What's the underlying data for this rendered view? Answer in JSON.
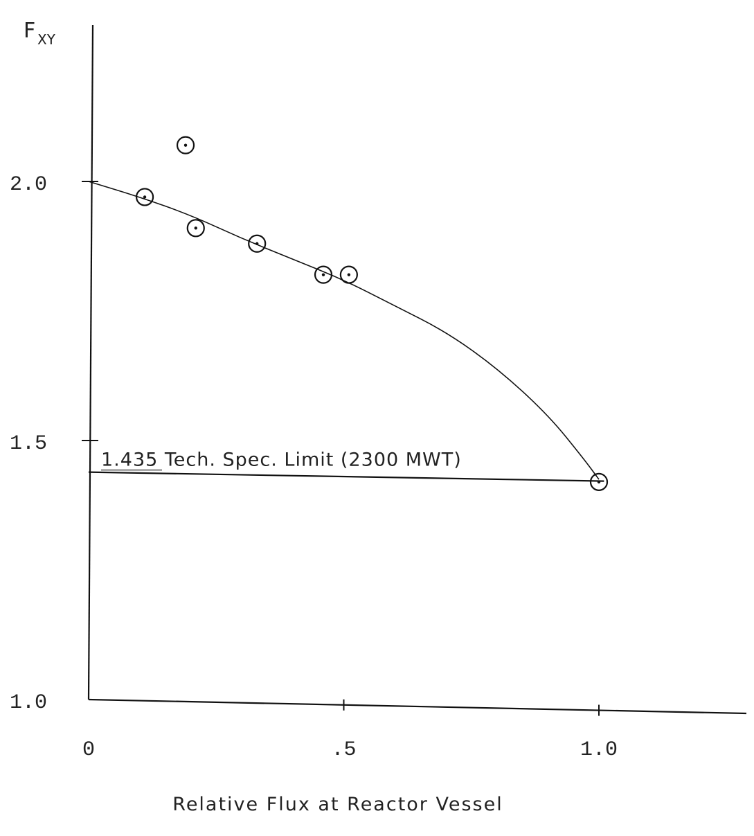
{
  "chart_data": {
    "type": "scatter",
    "xlabel": "Relative Flux at Reactor Vessel",
    "ylabel_main": "F",
    "ylabel_sub": "XY",
    "xlim": [
      0,
      1.28
    ],
    "ylim": [
      1.0,
      2.3
    ],
    "x_ticks": [
      {
        "value": 0,
        "label": "0"
      },
      {
        "value": 0.5,
        "label": ".5"
      },
      {
        "value": 1.0,
        "label": "1.0"
      }
    ],
    "y_ticks": [
      {
        "value": 1.0,
        "label": "1.0"
      },
      {
        "value": 1.5,
        "label": "1.5"
      },
      {
        "value": 2.0,
        "label": "2.0"
      }
    ],
    "points": [
      {
        "x": 0.11,
        "y": 1.97
      },
      {
        "x": 0.19,
        "y": 2.07
      },
      {
        "x": 0.21,
        "y": 1.91
      },
      {
        "x": 0.33,
        "y": 1.88
      },
      {
        "x": 0.46,
        "y": 1.82
      },
      {
        "x": 0.51,
        "y": 1.82
      },
      {
        "x": 1.0,
        "y": 1.42
      }
    ],
    "fit_curve": [
      {
        "x": 0.0,
        "y": 2.0
      },
      {
        "x": 0.1,
        "y": 1.97
      },
      {
        "x": 0.2,
        "y": 1.935
      },
      {
        "x": 0.3,
        "y": 1.89
      },
      {
        "x": 0.4,
        "y": 1.85
      },
      {
        "x": 0.5,
        "y": 1.81
      },
      {
        "x": 0.6,
        "y": 1.76
      },
      {
        "x": 0.7,
        "y": 1.71
      },
      {
        "x": 0.8,
        "y": 1.64
      },
      {
        "x": 0.9,
        "y": 1.55
      },
      {
        "x": 0.97,
        "y": 1.465
      },
      {
        "x": 1.0,
        "y": 1.425
      }
    ],
    "limit_line": {
      "y": 1.435,
      "x_range": [
        0,
        1.01
      ],
      "label": "1.435 Tech. Spec. Limit (2300 MWT)"
    },
    "grid": false,
    "legend": "none"
  }
}
